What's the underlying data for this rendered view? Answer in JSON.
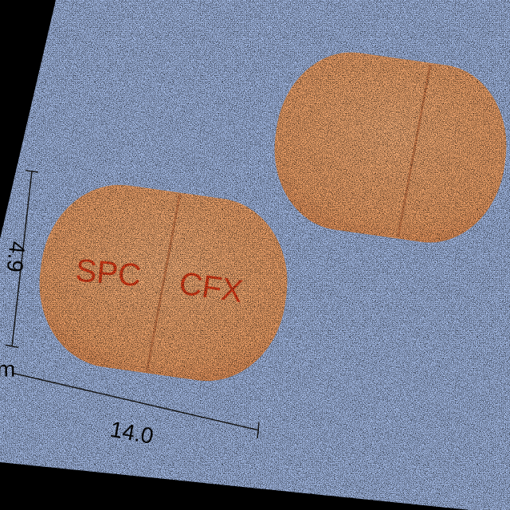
{
  "imprint": {
    "left": "SPC",
    "right": "CFX"
  },
  "dimensions": {
    "height": "4.9",
    "length": "14.0",
    "unit_fragment": "m"
  }
}
